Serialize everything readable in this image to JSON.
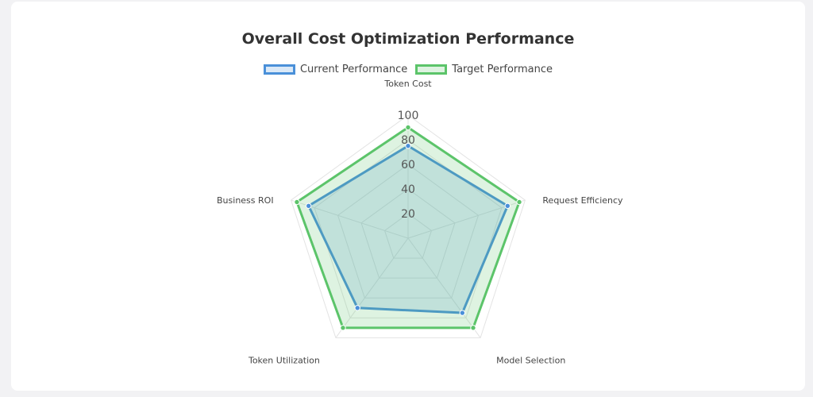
{
  "chart_data": {
    "type": "radar",
    "title": "Overall Cost Optimization Performance",
    "categories": [
      "Token Cost",
      "Request Efficiency",
      "Model Selection",
      "Token Utilization",
      "Business ROI"
    ],
    "ticks": [
      "20",
      "40",
      "60",
      "80",
      "100"
    ],
    "rmax": 100,
    "rticks": [
      20,
      40,
      60,
      80,
      100
    ],
    "legend_position": "top",
    "grid": true,
    "series": [
      {
        "name": "Current Performance",
        "values": [
          75,
          85,
          75,
          70,
          85
        ],
        "color": "#4a90d9",
        "fill": "rgba(74,144,217,0.2)"
      },
      {
        "name": "Target Performance",
        "values": [
          90,
          95,
          90,
          90,
          95
        ],
        "color": "#5cc46a",
        "fill": "rgba(92,196,106,0.2)"
      }
    ]
  }
}
